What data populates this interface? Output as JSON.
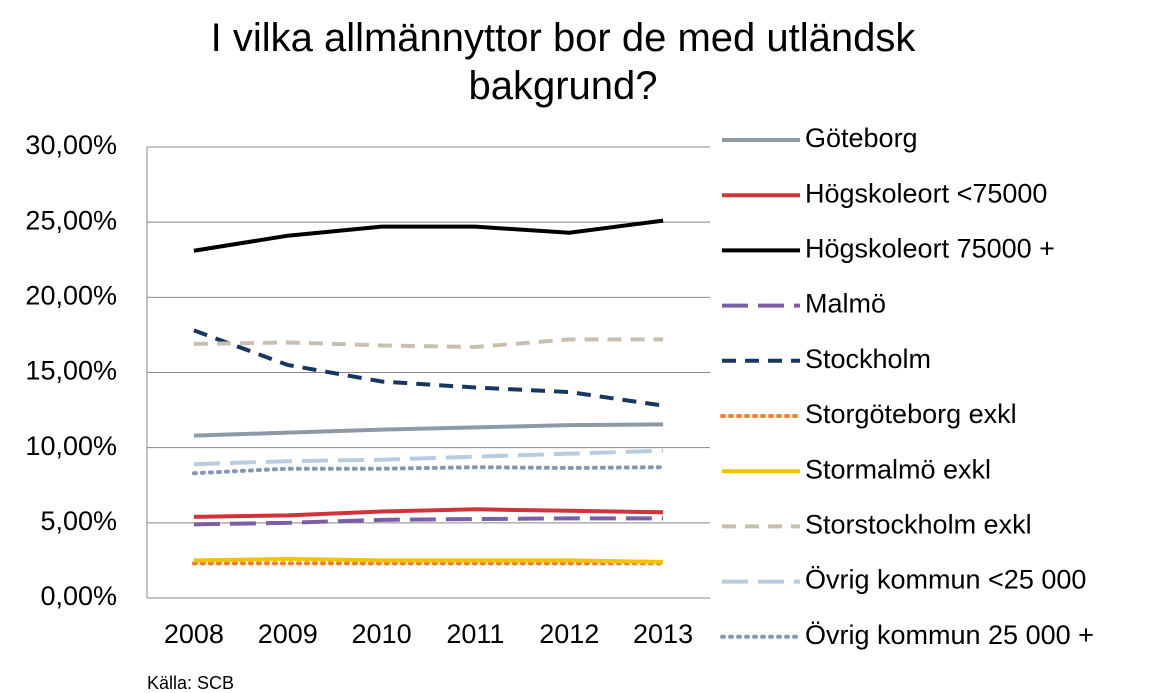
{
  "chart_data": {
    "type": "line",
    "title": "I vilka allmännyttor bor de med utländsk bakgrund?",
    "source": "Källa: SCB",
    "categories": [
      "2008",
      "2009",
      "2010",
      "2011",
      "2012",
      "2013"
    ],
    "ylim": [
      0,
      30
    ],
    "yticks": [
      {
        "value": 0,
        "label": "0,00%"
      },
      {
        "value": 5,
        "label": "5,00%"
      },
      {
        "value": 10,
        "label": "10,00%"
      },
      {
        "value": 15,
        "label": "15,00%"
      },
      {
        "value": 20,
        "label": "20,00%"
      },
      {
        "value": 25,
        "label": "25,00%"
      },
      {
        "value": 30,
        "label": "30,00%"
      }
    ],
    "grid": true,
    "legend": "right",
    "series": [
      {
        "name": "Göteborg",
        "color": "#8c9aa8",
        "style": "solid",
        "values": [
          10.8,
          11.0,
          11.2,
          11.35,
          11.5,
          11.55
        ]
      },
      {
        "name": "Högskoleort <75000",
        "color": "#d0343a",
        "style": "solid",
        "values": [
          5.4,
          5.5,
          5.75,
          5.9,
          5.8,
          5.7
        ]
      },
      {
        "name": "Högskoleort 75000 +",
        "color": "#000000",
        "style": "solid",
        "values": [
          23.1,
          24.1,
          24.7,
          24.7,
          24.3,
          25.1
        ]
      },
      {
        "name": "Malmö",
        "color": "#7b5ea7",
        "style": "longdash",
        "values": [
          4.9,
          5.0,
          5.2,
          5.25,
          5.3,
          5.3
        ]
      },
      {
        "name": "Stockholm",
        "color": "#17375e",
        "style": "dash",
        "values": [
          17.8,
          15.5,
          14.4,
          14.0,
          13.7,
          12.8
        ]
      },
      {
        "name": "Storgöteborg exkl",
        "color": "#f08030",
        "style": "dot",
        "values": [
          2.3,
          2.3,
          2.3,
          2.3,
          2.3,
          2.3
        ]
      },
      {
        "name": "Stormalmö exkl",
        "color": "#f5c200",
        "style": "solid",
        "values": [
          2.5,
          2.6,
          2.5,
          2.5,
          2.5,
          2.4
        ]
      },
      {
        "name": "Storstockholm exkl",
        "color": "#c9bfb1",
        "style": "dash",
        "values": [
          16.9,
          17.0,
          16.8,
          16.7,
          17.2,
          17.2
        ]
      },
      {
        "name": "Övrig kommun <25 000",
        "color": "#b8cce0",
        "style": "longdash",
        "values": [
          8.9,
          9.1,
          9.2,
          9.4,
          9.6,
          9.8
        ]
      },
      {
        "name": "Övrig kommun 25 000 +",
        "color": "#8597b0",
        "style": "dot",
        "values": [
          8.3,
          8.6,
          8.6,
          8.7,
          8.65,
          8.7
        ]
      }
    ]
  }
}
